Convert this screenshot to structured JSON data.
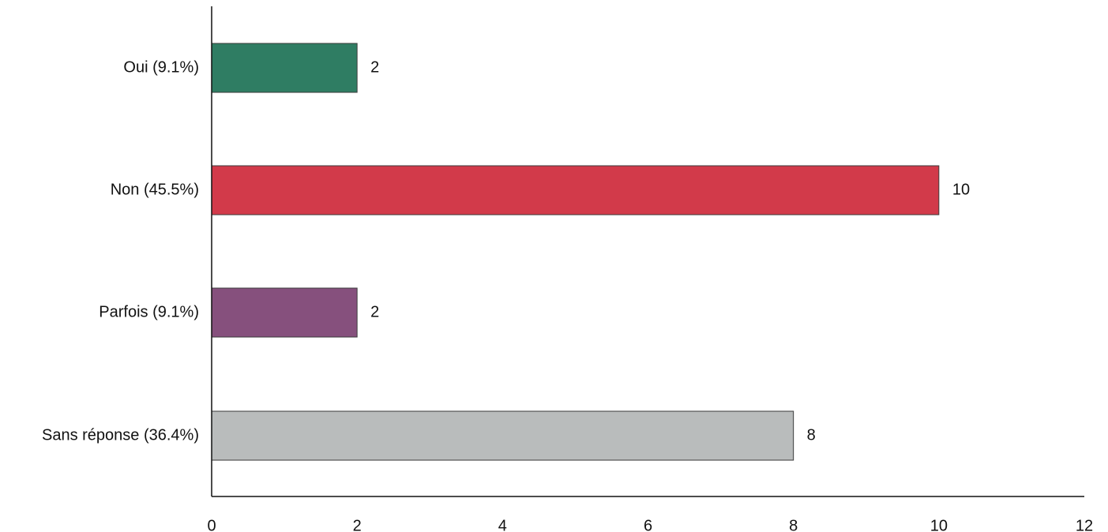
{
  "chart_data": {
    "type": "bar",
    "orientation": "horizontal",
    "categories": [
      "Oui (9.1%)",
      "Non (45.5%)",
      "Parfois (9.1%)",
      "Sans réponse (36.4%)"
    ],
    "values": [
      2,
      10,
      2,
      8
    ],
    "data_labels": [
      "2",
      "10",
      "2",
      "8"
    ],
    "colors": [
      "#2f7d63",
      "#d23a4a",
      "#86507d",
      "#b9bcbc"
    ],
    "xlim": [
      0,
      12
    ],
    "x_ticks": [
      0,
      2,
      4,
      6,
      8,
      10,
      12
    ],
    "x_tick_labels": [
      "0",
      "2",
      "4",
      "6",
      "8",
      "10",
      "12"
    ],
    "grid": false,
    "legend": "none"
  }
}
